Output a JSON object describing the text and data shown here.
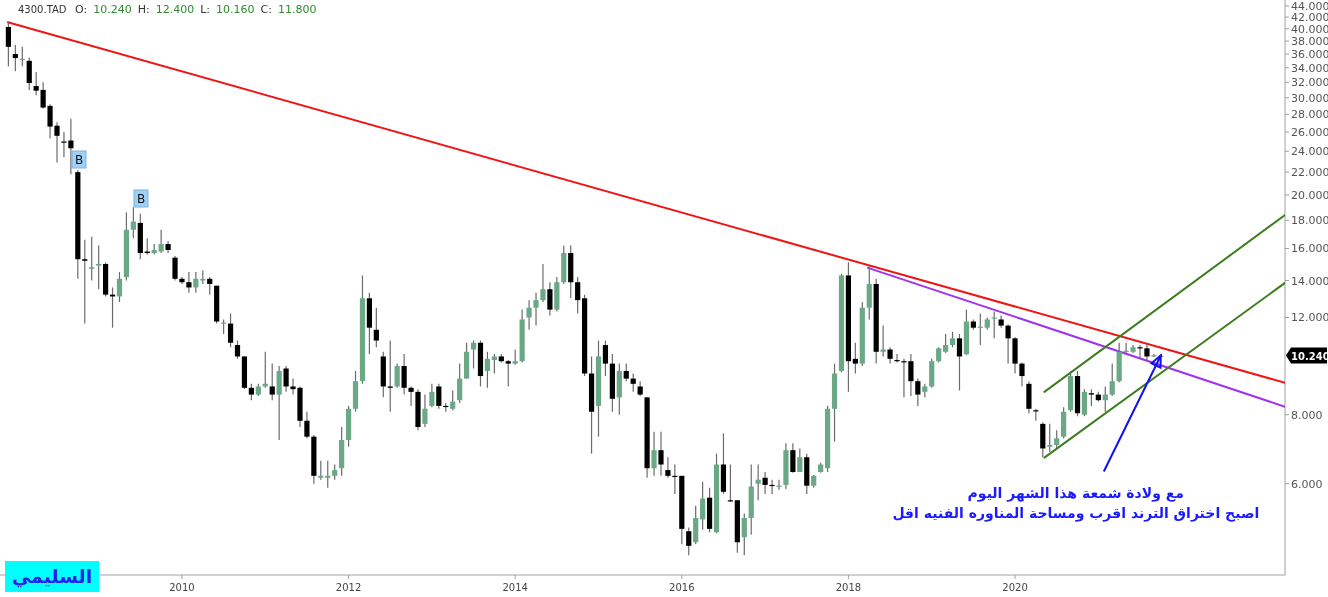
{
  "chart_data": {
    "type": "candlestick",
    "title": "4300.TAD",
    "subtitle": "O: 10.240 H: 12.400 L: 10.160 C: 11.800",
    "log": "y",
    "xlim": [
      "2007-10-25",
      "2023-03-28"
    ],
    "ylim": [
      4.1,
      45.1
    ],
    "xticks": [
      "2010",
      "2012",
      "2014",
      "2016",
      "2018",
      "2020"
    ],
    "yticks": [
      {
        "value": 6,
        "label": "6.000"
      },
      {
        "value": 8,
        "label": "8.000"
      },
      {
        "value": 12,
        "label": "12.000"
      },
      {
        "value": 14,
        "label": "14.000"
      },
      {
        "value": 16,
        "label": "16.000"
      },
      {
        "value": 18,
        "label": "18.000"
      },
      {
        "value": 20,
        "label": "20.000"
      },
      {
        "value": 22,
        "label": "22.000"
      },
      {
        "value": 24,
        "label": "24.000"
      },
      {
        "value": 26,
        "label": "26.000"
      },
      {
        "value": 28,
        "label": "28.000"
      },
      {
        "value": 30,
        "label": "30.000"
      },
      {
        "value": 32,
        "label": "32.000"
      },
      {
        "value": 34,
        "label": "34.000"
      },
      {
        "value": 36,
        "label": "36.000"
      },
      {
        "value": 38,
        "label": "38.000"
      },
      {
        "value": 40,
        "label": "40.000"
      },
      {
        "value": 42,
        "label": "42.000"
      },
      {
        "value": 44,
        "label": "44.000"
      }
    ],
    "x": [
      "2007-12",
      "2008-01",
      "2008-02",
      "2008-03",
      "2008-04",
      "2008-05",
      "2008-06",
      "2008-07",
      "2008-08",
      "2008-09",
      "2008-10",
      "2008-11",
      "2008-12",
      "2009-01",
      "2009-02",
      "2009-03",
      "2009-04",
      "2009-05",
      "2009-06",
      "2009-07",
      "2009-08",
      "2009-09",
      "2009-10",
      "2009-11",
      "2009-12",
      "2010-01",
      "2010-02",
      "2010-03",
      "2010-04",
      "2010-05",
      "2010-06",
      "2010-07",
      "2010-08",
      "2010-09",
      "2010-10",
      "2010-11",
      "2010-12",
      "2011-01",
      "2011-02",
      "2011-03",
      "2011-04",
      "2011-05",
      "2011-06",
      "2011-07",
      "2011-08",
      "2011-09",
      "2011-10",
      "2011-11",
      "2011-12",
      "2012-01",
      "2012-02",
      "2012-03",
      "2012-04",
      "2012-05",
      "2012-06",
      "2012-07",
      "2012-08",
      "2012-09",
      "2012-10",
      "2012-11",
      "2012-12",
      "2013-01",
      "2013-02",
      "2013-03",
      "2013-04",
      "2013-05",
      "2013-06",
      "2013-07",
      "2013-08",
      "2013-09",
      "2013-10",
      "2013-11",
      "2013-12",
      "2014-01",
      "2014-02",
      "2014-03",
      "2014-04",
      "2014-05",
      "2014-06",
      "2014-07",
      "2014-08",
      "2014-09",
      "2014-10",
      "2014-11",
      "2014-12",
      "2015-01",
      "2015-02",
      "2015-03",
      "2015-04",
      "2015-05",
      "2015-06",
      "2015-07",
      "2015-08",
      "2015-09",
      "2015-10",
      "2015-11",
      "2015-12",
      "2016-01",
      "2016-02",
      "2016-03",
      "2016-04",
      "2016-05",
      "2016-06",
      "2016-07",
      "2016-08",
      "2016-09",
      "2016-10",
      "2016-11",
      "2016-12",
      "2017-01",
      "2017-02",
      "2017-03",
      "2017-04",
      "2017-05",
      "2017-06",
      "2017-07",
      "2017-08",
      "2017-09",
      "2017-10",
      "2017-11",
      "2017-12",
      "2018-01",
      "2018-02",
      "2018-03",
      "2018-04",
      "2018-05",
      "2018-06",
      "2018-07",
      "2018-08",
      "2018-09",
      "2018-10",
      "2018-11",
      "2018-12",
      "2019-01",
      "2019-02",
      "2019-03",
      "2019-04",
      "2019-05",
      "2019-06",
      "2019-07",
      "2019-08",
      "2019-09",
      "2019-10",
      "2019-11",
      "2019-12",
      "2020-01",
      "2020-02",
      "2020-03",
      "2020-04",
      "2020-05",
      "2020-06",
      "2020-07",
      "2020-08",
      "2020-09",
      "2020-10",
      "2020-11",
      "2020-12",
      "2021-01",
      "2021-02",
      "2021-03",
      "2021-04",
      "2021-05",
      "2021-06",
      "2021-07",
      "2021-08",
      "2021-09",
      "2021-10"
    ],
    "ohlc": [
      [
        40.3,
        41.0,
        34.2,
        37.1
      ],
      [
        36.0,
        37.4,
        33.5,
        35.4
      ],
      [
        35.2,
        37.1,
        34.2,
        35.3
      ],
      [
        35.0,
        35.5,
        31.0,
        31.9
      ],
      [
        31.5,
        33.4,
        30.3,
        30.9
      ],
      [
        31.0,
        32.0,
        28.7,
        28.8
      ],
      [
        29.0,
        29.2,
        25.3,
        26.6
      ],
      [
        26.7,
        27.1,
        22.9,
        25.6
      ],
      [
        25.0,
        26.0,
        23.4,
        24.9
      ],
      [
        25.1,
        27.5,
        21.8,
        24.3
      ],
      [
        22.0,
        22.2,
        14.1,
        15.3
      ],
      [
        15.3,
        16.6,
        11.7,
        15.2
      ],
      [
        14.7,
        16.8,
        14.0,
        14.8
      ],
      [
        14.9,
        16.2,
        13.5,
        15.0
      ],
      [
        15.0,
        15.1,
        13.1,
        13.2
      ],
      [
        13.2,
        13.6,
        11.5,
        13.1
      ],
      [
        13.1,
        14.5,
        12.8,
        14.1
      ],
      [
        14.2,
        18.6,
        14.0,
        17.3
      ],
      [
        17.3,
        19.0,
        16.7,
        17.9
      ],
      [
        17.8,
        18.5,
        15.3,
        15.7
      ],
      [
        15.8,
        16.7,
        15.6,
        15.7
      ],
      [
        15.7,
        16.3,
        15.6,
        15.9
      ],
      [
        15.8,
        17.3,
        15.7,
        16.3
      ],
      [
        16.3,
        16.5,
        15.7,
        15.9
      ],
      [
        15.4,
        15.5,
        14.0,
        14.1
      ],
      [
        14.1,
        14.2,
        13.8,
        13.9
      ],
      [
        13.9,
        14.5,
        13.3,
        13.6
      ],
      [
        13.6,
        14.5,
        13.3,
        14.1
      ],
      [
        14.0,
        14.6,
        13.8,
        14.1
      ],
      [
        14.1,
        14.2,
        13.2,
        13.8
      ],
      [
        13.7,
        13.7,
        11.7,
        11.8
      ],
      [
        11.7,
        11.9,
        11.2,
        11.75
      ],
      [
        11.7,
        12.2,
        10.6,
        10.8
      ],
      [
        10.7,
        10.9,
        10.1,
        10.2
      ],
      [
        10.2,
        10.2,
        8.9,
        8.95
      ],
      [
        8.95,
        9.1,
        8.5,
        8.7
      ],
      [
        8.7,
        9.1,
        8.65,
        9.0
      ],
      [
        9.0,
        10.4,
        8.95,
        9.1
      ],
      [
        9.0,
        9.9,
        8.5,
        8.7
      ],
      [
        8.7,
        9.8,
        7.2,
        9.6
      ],
      [
        9.7,
        9.8,
        8.8,
        9.0
      ],
      [
        9.0,
        9.3,
        8.7,
        8.9
      ],
      [
        8.95,
        9.0,
        7.6,
        7.8
      ],
      [
        7.8,
        8.1,
        7.25,
        7.3
      ],
      [
        7.3,
        7.35,
        6.0,
        6.2
      ],
      [
        6.15,
        6.6,
        6.1,
        6.2
      ],
      [
        6.15,
        6.6,
        5.9,
        6.2
      ],
      [
        6.2,
        6.5,
        6.1,
        6.35
      ],
      [
        6.4,
        7.6,
        6.2,
        7.2
      ],
      [
        7.2,
        8.3,
        7.0,
        8.2
      ],
      [
        8.2,
        9.6,
        8.1,
        9.2
      ],
      [
        9.2,
        14.3,
        9.1,
        13.0
      ],
      [
        13.0,
        13.3,
        10.3,
        11.5
      ],
      [
        11.4,
        12.5,
        10.6,
        10.9
      ],
      [
        10.2,
        10.4,
        8.6,
        9.0
      ],
      [
        9.0,
        10.9,
        8.1,
        8.95
      ],
      [
        9.0,
        9.9,
        8.95,
        9.8
      ],
      [
        9.8,
        10.3,
        8.7,
        8.95
      ],
      [
        8.95,
        9.0,
        8.3,
        8.8
      ],
      [
        8.8,
        8.9,
        7.5,
        7.6
      ],
      [
        7.7,
        8.7,
        7.6,
        8.2
      ],
      [
        8.3,
        9.1,
        8.25,
        8.8
      ],
      [
        9.0,
        9.1,
        8.2,
        8.3
      ],
      [
        8.3,
        8.4,
        8.1,
        8.27
      ],
      [
        8.2,
        8.85,
        8.15,
        8.45
      ],
      [
        8.5,
        9.9,
        8.4,
        9.3
      ],
      [
        9.3,
        10.8,
        9.3,
        10.4
      ],
      [
        10.5,
        10.9,
        9.7,
        10.8
      ],
      [
        10.8,
        10.9,
        9.0,
        9.4
      ],
      [
        9.6,
        10.4,
        8.95,
        10.1
      ],
      [
        10.05,
        10.3,
        9.5,
        10.2
      ],
      [
        10.2,
        10.3,
        9.95,
        10.0
      ],
      [
        10.0,
        10.05,
        9.0,
        9.9
      ],
      [
        9.9,
        10.5,
        9.85,
        10.0
      ],
      [
        10.0,
        12.4,
        9.95,
        11.9
      ],
      [
        12.0,
        12.9,
        11.4,
        12.5
      ],
      [
        12.5,
        13.3,
        11.6,
        12.9
      ],
      [
        12.9,
        15.0,
        12.8,
        13.5
      ],
      [
        13.5,
        13.9,
        12.1,
        12.4
      ],
      [
        12.4,
        14.2,
        12.3,
        13.9
      ],
      [
        13.9,
        16.2,
        13.8,
        15.7
      ],
      [
        15.7,
        16.2,
        13.0,
        13.9
      ],
      [
        13.9,
        14.2,
        12.2,
        12.9
      ],
      [
        13.0,
        13.2,
        9.4,
        9.5
      ],
      [
        9.5,
        10.2,
        6.8,
        8.1
      ],
      [
        8.3,
        10.9,
        7.3,
        10.2
      ],
      [
        10.7,
        10.9,
        9.4,
        9.9
      ],
      [
        9.9,
        10.3,
        8.1,
        8.55
      ],
      [
        8.6,
        9.9,
        8.0,
        9.6
      ],
      [
        9.6,
        9.9,
        9.2,
        9.3
      ],
      [
        9.3,
        9.5,
        8.8,
        9.1
      ],
      [
        9.0,
        9.2,
        8.65,
        8.7
      ],
      [
        8.6,
        8.6,
        6.15,
        6.4
      ],
      [
        6.4,
        7.45,
        6.2,
        6.9
      ],
      [
        6.9,
        7.45,
        6.2,
        6.5
      ],
      [
        6.35,
        6.7,
        6.15,
        6.2
      ],
      [
        6.2,
        6.5,
        5.75,
        6.18
      ],
      [
        6.2,
        6.2,
        4.66,
        4.97
      ],
      [
        4.92,
        5.0,
        4.45,
        4.63
      ],
      [
        4.7,
        5.47,
        4.66,
        5.2
      ],
      [
        5.17,
        6.05,
        4.95,
        5.64
      ],
      [
        5.66,
        5.9,
        4.9,
        4.97
      ],
      [
        4.9,
        6.8,
        4.88,
        6.5
      ],
      [
        6.5,
        7.4,
        5.75,
        5.8
      ],
      [
        5.6,
        6.5,
        5.56,
        5.58
      ],
      [
        5.6,
        5.6,
        4.5,
        4.7
      ],
      [
        4.8,
        5.3,
        4.45,
        5.2
      ],
      [
        5.2,
        6.5,
        4.85,
        5.93
      ],
      [
        6.0,
        6.5,
        5.6,
        6.1
      ],
      [
        6.15,
        6.3,
        5.75,
        5.97
      ],
      [
        5.97,
        6.1,
        5.75,
        5.95
      ],
      [
        5.92,
        6.1,
        5.85,
        5.95
      ],
      [
        5.97,
        7.1,
        5.87,
        6.9
      ],
      [
        6.9,
        7.1,
        6.28,
        6.3
      ],
      [
        6.3,
        6.95,
        6.3,
        6.7
      ],
      [
        6.7,
        6.8,
        5.75,
        5.95
      ],
      [
        5.95,
        6.22,
        5.9,
        6.2
      ],
      [
        6.3,
        6.55,
        6.28,
        6.5
      ],
      [
        6.4,
        8.3,
        6.3,
        8.2
      ],
      [
        8.2,
        9.9,
        7.15,
        9.5
      ],
      [
        9.6,
        14.4,
        9.55,
        14.3
      ],
      [
        14.3,
        15.1,
        8.8,
        10.0
      ],
      [
        10.1,
        10.8,
        9.5,
        9.9
      ],
      [
        9.9,
        12.8,
        9.8,
        12.5
      ],
      [
        12.5,
        14.9,
        11.9,
        13.8
      ],
      [
        13.8,
        14.1,
        9.9,
        10.4
      ],
      [
        10.4,
        11.6,
        10.2,
        10.5
      ],
      [
        10.5,
        10.6,
        9.9,
        10.1
      ],
      [
        10.05,
        10.3,
        9.95,
        10.0
      ],
      [
        10.0,
        10.1,
        8.6,
        9.98
      ],
      [
        10.0,
        10.3,
        8.65,
        9.2
      ],
      [
        9.2,
        9.3,
        8.3,
        8.7
      ],
      [
        8.8,
        9.1,
        8.6,
        9.0
      ],
      [
        9.0,
        10.1,
        8.95,
        10.0
      ],
      [
        10.0,
        10.6,
        9.95,
        10.55
      ],
      [
        10.4,
        11.2,
        10.35,
        10.7
      ],
      [
        10.7,
        11.3,
        10.6,
        11.0
      ],
      [
        11.0,
        11.2,
        8.85,
        10.2
      ],
      [
        10.3,
        12.4,
        10.25,
        11.8
      ],
      [
        11.8,
        11.9,
        11.4,
        11.5
      ],
      [
        11.5,
        12.2,
        10.7,
        11.55
      ],
      [
        11.5,
        12.0,
        11.4,
        11.9
      ],
      [
        11.95,
        12.3,
        11.0,
        12.0
      ],
      [
        11.9,
        12.1,
        11.5,
        11.6
      ],
      [
        11.6,
        11.65,
        9.9,
        11.0
      ],
      [
        11.0,
        11.05,
        9.5,
        9.9
      ],
      [
        9.9,
        9.95,
        9.0,
        9.4
      ],
      [
        9.1,
        9.2,
        8.05,
        8.2
      ],
      [
        8.15,
        8.2,
        7.8,
        8.12
      ],
      [
        7.7,
        7.75,
        6.7,
        6.95
      ],
      [
        7.0,
        7.7,
        6.85,
        7.05
      ],
      [
        7.05,
        7.5,
        6.95,
        7.25
      ],
      [
        7.3,
        8.25,
        7.25,
        8.1
      ],
      [
        8.15,
        9.6,
        8.1,
        9.4
      ],
      [
        9.4,
        9.6,
        7.95,
        8.05
      ],
      [
        8.0,
        8.9,
        7.95,
        8.8
      ],
      [
        8.75,
        8.9,
        8.3,
        8.7
      ],
      [
        8.7,
        8.8,
        8.45,
        8.5
      ],
      [
        8.5,
        9.0,
        8.1,
        8.7
      ],
      [
        8.7,
        9.9,
        8.65,
        9.2
      ],
      [
        9.2,
        10.8,
        9.15,
        10.4
      ],
      [
        10.4,
        10.8,
        10.35,
        10.45
      ],
      [
        10.4,
        10.7,
        10.35,
        10.6
      ],
      [
        10.6,
        10.7,
        10.1,
        10.55
      ],
      [
        10.55,
        10.75,
        10.0,
        10.2
      ],
      [
        10.22,
        10.3,
        10.18,
        10.25
      ],
      [
        10.2,
        10.3,
        10.18,
        10.24
      ]
    ],
    "colors": [
      "#000000",
      "#000000",
      "#6aa886",
      "#000000",
      "#000000",
      "#000000",
      "#000000",
      "#000000",
      "#000000",
      "#000000",
      "#000000",
      "#000000",
      "#6aa886",
      "#6aa886",
      "#000000",
      "#000000",
      "#6aa886",
      "#6aa886",
      "#6aa886",
      "#000000",
      "#000000",
      "#6aa886",
      "#6aa886",
      "#000000",
      "#000000",
      "#000000",
      "#000000",
      "#6aa886",
      "#6aa886",
      "#000000",
      "#000000",
      "#6aa886",
      "#000000",
      "#000000",
      "#000000",
      "#000000",
      "#6aa886",
      "#6aa886",
      "#000000",
      "#6aa886",
      "#000000",
      "#000000",
      "#000000",
      "#000000",
      "#000000",
      "#6aa886",
      "#6aa886",
      "#6aa886",
      "#6aa886",
      "#6aa886",
      "#6aa886",
      "#6aa886",
      "#000000",
      "#000000",
      "#000000",
      "#000000",
      "#6aa886",
      "#000000",
      "#000000",
      "#000000",
      "#6aa886",
      "#6aa886",
      "#000000",
      "#000000",
      "#6aa886",
      "#6aa886",
      "#6aa886",
      "#6aa886",
      "#000000",
      "#6aa886",
      "#6aa886",
      "#000000",
      "#000000",
      "#6aa886",
      "#6aa886",
      "#6aa886",
      "#6aa886",
      "#6aa886",
      "#000000",
      "#6aa886",
      "#6aa886",
      "#000000",
      "#000000",
      "#000000",
      "#000000",
      "#6aa886",
      "#000000",
      "#000000",
      "#6aa886",
      "#000000",
      "#000000",
      "#000000",
      "#000000",
      "#6aa886",
      "#000000",
      "#000000",
      "#000000",
      "#000000",
      "#000000",
      "#6aa886",
      "#6aa886",
      "#000000",
      "#6aa886",
      "#000000",
      "#000000",
      "#000000",
      "#6aa886",
      "#6aa886",
      "#6aa886",
      "#000000",
      "#000000",
      "#6aa886",
      "#6aa886",
      "#000000",
      "#6aa886",
      "#000000",
      "#6aa886",
      "#6aa886",
      "#6aa886",
      "#6aa886",
      "#6aa886",
      "#000000",
      "#000000",
      "#6aa886",
      "#6aa886",
      "#000000",
      "#6aa886",
      "#000000",
      "#000000",
      "#000000",
      "#000000",
      "#000000",
      "#6aa886",
      "#6aa886",
      "#6aa886",
      "#6aa886",
      "#6aa886",
      "#000000",
      "#6aa886",
      "#000000",
      "#6aa886",
      "#6aa886",
      "#6aa886",
      "#000000",
      "#000000",
      "#000000",
      "#000000",
      "#000000",
      "#000000",
      "#000000",
      "#6aa886",
      "#6aa886",
      "#6aa886",
      "#6aa886",
      "#000000",
      "#6aa886",
      "#000000",
      "#000000",
      "#6aa886",
      "#6aa886",
      "#6aa886",
      "#6aa886",
      "#6aa886",
      "#000000",
      "#000000",
      "#6aa886",
      "#6aa886"
    ],
    "series": [
      {
        "type": "line",
        "color": "#f01515",
        "x": [
          "2007-11-29",
          "2023-03-28"
        ],
        "values": [
          41.1,
          9.14
        ]
      },
      {
        "type": "line",
        "color": "#a033f0",
        "x": [
          "2018-03-26",
          "2023-03-28"
        ],
        "values": [
          14.76,
          8.27
        ]
      },
      {
        "type": "line",
        "color": "#3c7d1e",
        "x": [
          "2020-05-08",
          "2023-03-28"
        ],
        "values": [
          8.8,
          18.4
        ]
      },
      {
        "type": "line",
        "color": "#3c7d1e",
        "x": [
          "2020-05-08",
          "2023-03-28"
        ],
        "values": [
          6.69,
          13.86
        ]
      }
    ],
    "annotations": [
      "B",
      "B",
      {
        "text": "مع ولادة شمعة هذا الشهر اليوم\nاصبح اختراق الترند اقرب ومساحة المناوره الفنيه اقل",
        "x": "2021-10",
        "y": 10.24
      },
      "10.240",
      "السليمي"
    ]
  }
}
